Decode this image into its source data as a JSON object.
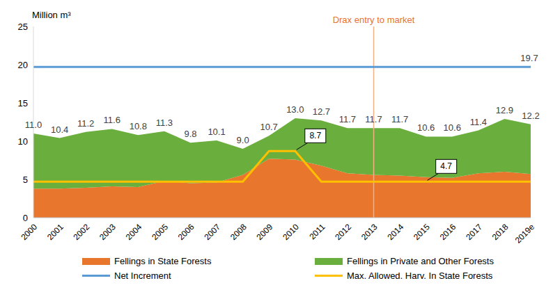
{
  "chart_data": {
    "type": "area",
    "stacked": true,
    "grid": false,
    "legend": "bottom",
    "y_label": "Million m³",
    "categories": [
      "2000",
      "2001",
      "2002",
      "2003",
      "2004",
      "2005",
      "2006",
      "2007",
      "2008",
      "2009",
      "2010",
      "2011",
      "2012",
      "2013",
      "2014",
      "2015",
      "2016",
      "2017",
      "2018",
      "2019e"
    ],
    "ylim": [
      0,
      25
    ],
    "yticks": [
      0,
      5,
      10,
      15,
      20,
      25
    ],
    "series": [
      {
        "name": "Fellings in State Forests",
        "type": "area",
        "color": "#E8762C",
        "values": [
          3.8,
          3.8,
          3.9,
          4.1,
          4.0,
          4.8,
          4.5,
          4.6,
          5.6,
          7.7,
          7.6,
          6.8,
          5.8,
          5.6,
          5.5,
          5.3,
          5.2,
          5.8,
          6.0,
          5.7
        ]
      },
      {
        "name": "Fellings in Private and Other Forests",
        "type": "area",
        "color": "#6AAE3E",
        "values": [
          7.2,
          6.6,
          7.3,
          7.5,
          6.8,
          6.5,
          5.3,
          5.5,
          3.4,
          3.0,
          5.4,
          5.9,
          5.9,
          6.1,
          6.2,
          5.3,
          5.4,
          5.6,
          6.9,
          6.5
        ]
      },
      {
        "name": "Net Increment",
        "type": "line",
        "color": "#5B9BD5",
        "values": [
          19.7,
          19.7,
          19.7,
          19.7,
          19.7,
          19.7,
          19.7,
          19.7,
          19.7,
          19.7,
          19.7,
          19.7,
          19.7,
          19.7,
          19.7,
          19.7,
          19.7,
          19.7,
          19.7,
          19.7
        ]
      },
      {
        "name": "Max. Allowed. Harv. In State Forests",
        "type": "line",
        "color": "#FFC000",
        "values": [
          4.7,
          4.7,
          4.7,
          4.7,
          4.7,
          4.7,
          4.7,
          4.7,
          4.7,
          8.7,
          8.7,
          4.7,
          4.7,
          4.7,
          4.7,
          4.7,
          4.7,
          4.7,
          4.7,
          4.7
        ]
      }
    ],
    "total_labels": [
      "11.0",
      "10.4",
      "11.2",
      "11.6",
      "10.8",
      "11.3",
      "9.8",
      "10.1",
      "9.0",
      "10.7",
      "13.0",
      "12.7",
      "11.7",
      "11.7",
      "11.7",
      "10.6",
      "10.6",
      "11.4",
      "12.9",
      "12.2"
    ],
    "annotations": [
      {
        "series": "Net Increment",
        "category": "2019e",
        "label": "19.7",
        "boxed": false
      },
      {
        "series": "Max. Allowed. Harv. In State Forests",
        "category": "2010",
        "label": "8.7",
        "boxed": true
      },
      {
        "series": "Max. Allowed. Harv. In State Forests",
        "category": "2015",
        "label": "4.7",
        "boxed": true
      }
    ],
    "reference_line": {
      "x": "2013",
      "label": "Drax entry to market",
      "color": "#F4B183",
      "text_color": "#E97132"
    }
  }
}
